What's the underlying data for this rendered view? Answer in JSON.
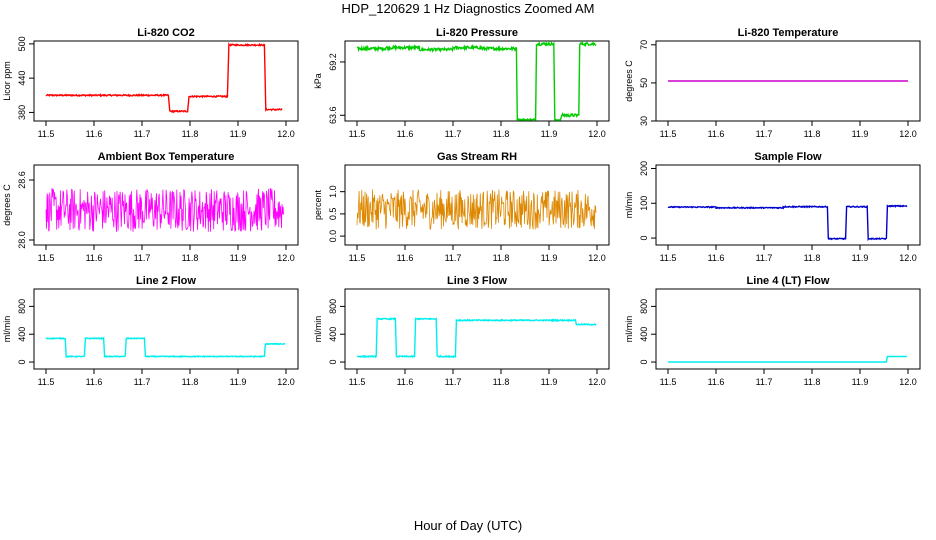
{
  "page": {
    "title": "HDP_120629  1 Hz Diagnostics Zoomed AM",
    "xlabel": "Hour of Day (UTC)"
  },
  "chart_data": [
    {
      "type": "line",
      "title": "Li-820 CO2",
      "ylabel": "Licor ppm",
      "color": "#ff0000",
      "xlim": [
        11.5,
        12.0
      ],
      "xticks": [
        11.5,
        11.6,
        11.7,
        11.8,
        11.9,
        12.0
      ],
      "ylim": [
        365,
        505
      ],
      "yticks": [
        380,
        440,
        500
      ],
      "series": [
        {
          "noise": 1.2,
          "segments": [
            [
              11.5,
              11.755,
              410
            ],
            [
              11.758,
              11.795,
              382
            ],
            [
              11.798,
              11.878,
              408
            ],
            [
              11.881,
              11.955,
              498
            ],
            [
              11.958,
              11.992,
              385
            ]
          ]
        }
      ]
    },
    {
      "type": "line",
      "title": "Li-820 Pressure",
      "ylabel": "kPa",
      "color": "#00cc00",
      "xlim": [
        11.5,
        12.0
      ],
      "xticks": [
        11.5,
        11.6,
        11.7,
        11.8,
        11.9,
        12.0
      ],
      "ylim": [
        63.0,
        71.4
      ],
      "yticks": [
        63.6,
        69.2
      ],
      "series": [
        {
          "noise": 0.15,
          "segments": [
            [
              11.5,
              11.56,
              70.6
            ],
            [
              11.56,
              11.63,
              70.7
            ],
            [
              11.63,
              11.7,
              70.5
            ],
            [
              11.7,
              11.76,
              70.7
            ],
            [
              11.76,
              11.832,
              70.6
            ],
            [
              11.834,
              11.872,
              63.1
            ],
            [
              11.874,
              11.91,
              71.1
            ],
            [
              11.912,
              11.924,
              63.0
            ],
            [
              11.926,
              11.962,
              63.6
            ],
            [
              11.964,
              11.998,
              71.1
            ]
          ]
        }
      ]
    },
    {
      "type": "line",
      "title": "Li-820 Temperature",
      "ylabel": "degrees C",
      "color": "#cc00cc",
      "xlim": [
        11.5,
        12.0
      ],
      "xticks": [
        11.5,
        11.6,
        11.7,
        11.8,
        11.9,
        12.0
      ],
      "ylim": [
        30,
        72
      ],
      "yticks": [
        30,
        50,
        70
      ],
      "series": [
        {
          "noise": 0,
          "segments": [
            [
              11.5,
              12.0,
              51
            ]
          ]
        }
      ]
    },
    {
      "type": "line",
      "title": "Ambient Box Temperature",
      "ylabel": "degrees C",
      "color": "#ff00ff",
      "xlim": [
        11.5,
        12.0
      ],
      "xticks": [
        11.5,
        11.6,
        11.7,
        11.8,
        11.9,
        12.0
      ],
      "ylim": [
        27.95,
        28.75
      ],
      "yticks": [
        28.0,
        28.6
      ],
      "series": [
        {
          "noise": 0.22,
          "segments": [
            [
              11.5,
              11.995,
              28.3
            ]
          ]
        }
      ]
    },
    {
      "type": "line",
      "title": "Gas Stream RH",
      "ylabel": "percent",
      "color": "#dd8800",
      "xlim": [
        11.5,
        12.0
      ],
      "xticks": [
        11.5,
        11.6,
        11.7,
        11.8,
        11.9,
        12.0
      ],
      "ylim": [
        -0.2,
        1.6
      ],
      "yticks": [
        0.0,
        0.5,
        1.0
      ],
      "series": [
        {
          "noise": 0.45,
          "segments": [
            [
              11.5,
              11.998,
              0.6
            ]
          ]
        }
      ]
    },
    {
      "type": "line",
      "title": "Sample Flow",
      "ylabel": "ml/min",
      "color": "#0000cc",
      "xlim": [
        11.5,
        12.0
      ],
      "xticks": [
        11.5,
        11.6,
        11.7,
        11.8,
        11.9,
        12.0
      ],
      "ylim": [
        -20,
        210
      ],
      "yticks": [
        0,
        100,
        200
      ],
      "series": [
        {
          "noise": 1.5,
          "segments": [
            [
              11.5,
              11.6,
              89
            ],
            [
              11.6,
              11.74,
              87
            ],
            [
              11.74,
              11.832,
              90
            ],
            [
              11.834,
              11.87,
              -2
            ],
            [
              11.872,
              11.9,
              90
            ],
            [
              11.902,
              11.915,
              90
            ],
            [
              11.917,
              11.955,
              -2
            ],
            [
              11.957,
              11.998,
              92
            ]
          ]
        }
      ]
    },
    {
      "type": "line",
      "title": "Line 2 Flow",
      "ylabel": "ml/min",
      "color": "#00eeee",
      "xlim": [
        11.5,
        12.0
      ],
      "xticks": [
        11.5,
        11.6,
        11.7,
        11.8,
        11.9,
        12.0
      ],
      "ylim": [
        -100,
        1050
      ],
      "yticks": [
        0,
        400,
        800
      ],
      "series": [
        {
          "noise": 6,
          "segments": [
            [
              11.5,
              11.54,
              340
            ],
            [
              11.542,
              11.58,
              80
            ],
            [
              11.582,
              11.62,
              340
            ],
            [
              11.622,
              11.665,
              80
            ],
            [
              11.667,
              11.705,
              340
            ],
            [
              11.707,
              11.955,
              80
            ],
            [
              11.957,
              11.998,
              260
            ]
          ]
        }
      ]
    },
    {
      "type": "line",
      "title": "Line 3 Flow",
      "ylabel": "ml/min",
      "color": "#00eeee",
      "xlim": [
        11.5,
        12.0
      ],
      "xticks": [
        11.5,
        11.6,
        11.7,
        11.8,
        11.9,
        12.0
      ],
      "ylim": [
        -100,
        1050
      ],
      "yticks": [
        0,
        400,
        800
      ],
      "series": [
        {
          "noise": 8,
          "segments": [
            [
              11.5,
              11.54,
              80
            ],
            [
              11.542,
              11.58,
              620
            ],
            [
              11.582,
              11.62,
              80
            ],
            [
              11.622,
              11.665,
              620
            ],
            [
              11.667,
              11.705,
              80
            ],
            [
              11.707,
              11.955,
              600
            ],
            [
              11.957,
              11.998,
              540
            ]
          ]
        }
      ]
    },
    {
      "type": "line",
      "title": "Line 4 (LT) Flow",
      "ylabel": "ml/min",
      "color": "#00eeee",
      "xlim": [
        11.5,
        12.0
      ],
      "xticks": [
        11.5,
        11.6,
        11.7,
        11.8,
        11.9,
        12.0
      ],
      "ylim": [
        -100,
        1050
      ],
      "yticks": [
        0,
        400,
        800
      ],
      "series": [
        {
          "noise": 0,
          "segments": [
            [
              11.5,
              11.955,
              0
            ],
            [
              11.957,
              11.998,
              80
            ]
          ]
        }
      ]
    }
  ]
}
